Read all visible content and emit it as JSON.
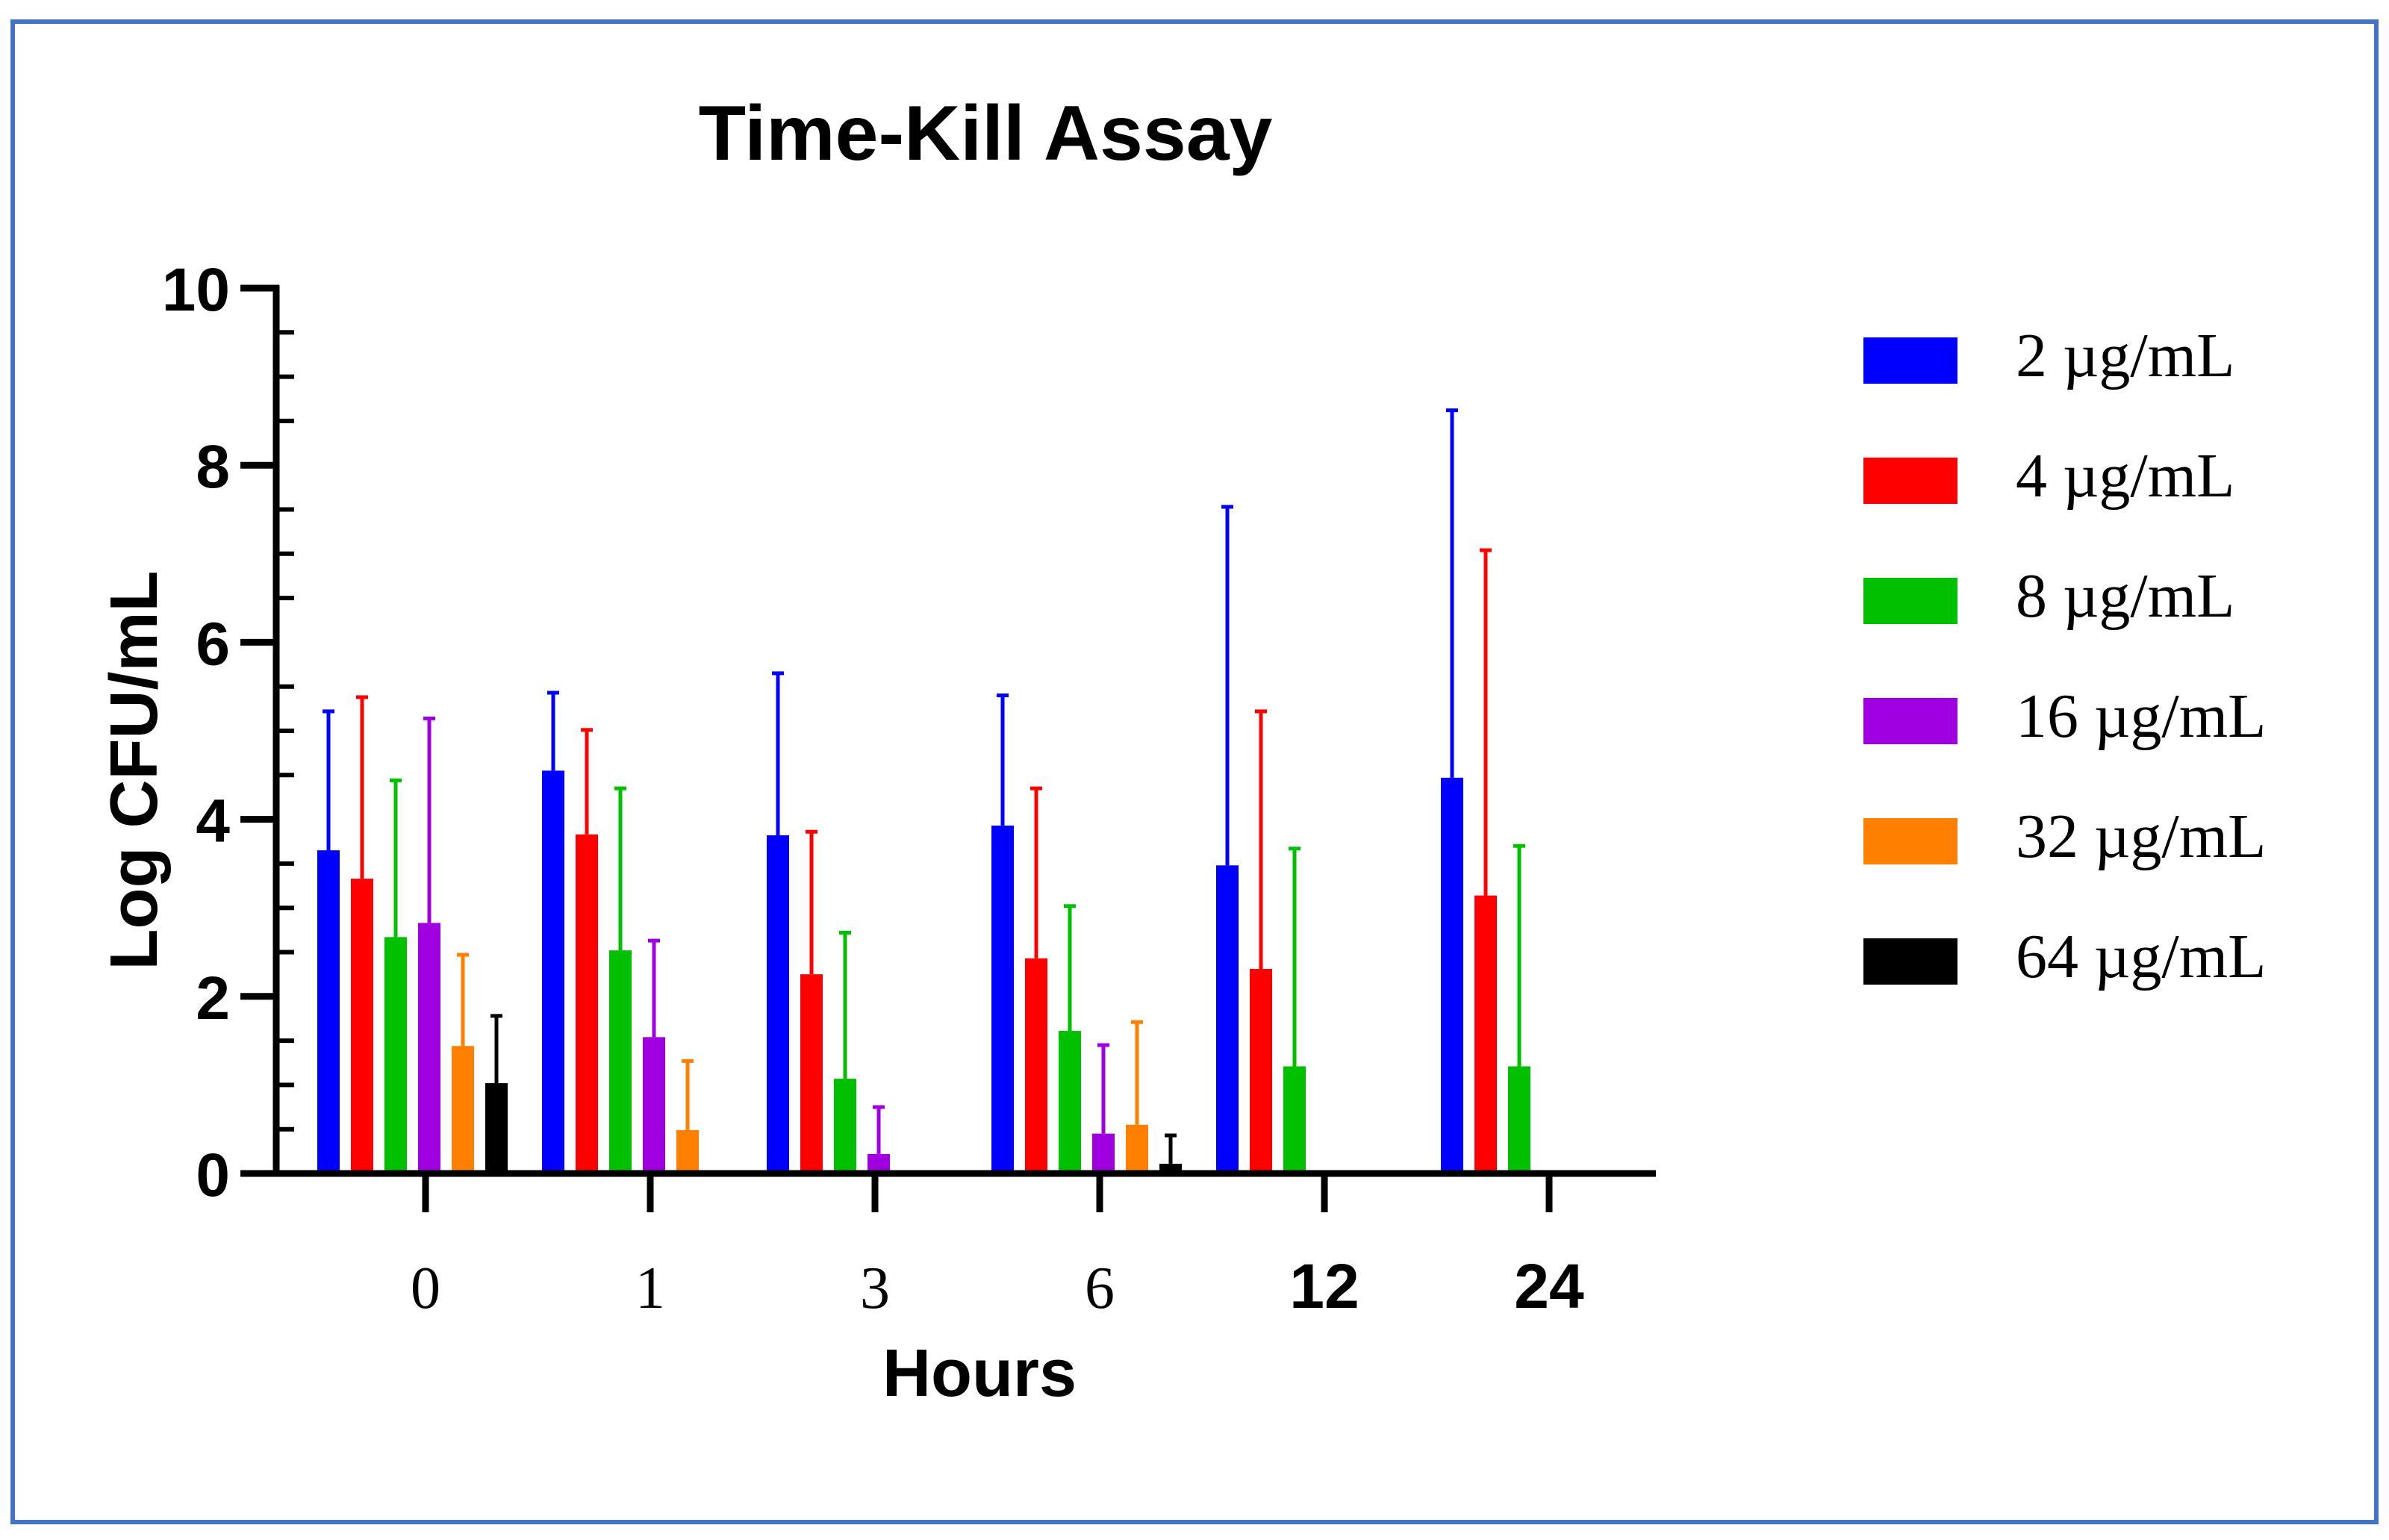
{
  "chart_data": {
    "type": "bar",
    "title": "Time-Kill Assay",
    "xlabel": "Hours",
    "ylabel": "Log CFU/mL",
    "categories": [
      "0",
      "1",
      "3",
      "6",
      "12",
      "24"
    ],
    "ylim": [
      0,
      10
    ],
    "yticks": [
      "0",
      "2",
      "4",
      "6",
      "8",
      "10"
    ],
    "grid": false,
    "legend_position": "right",
    "error_bars": "upper",
    "series": [
      {
        "name": "2 µg/mL",
        "color": "#0000ff",
        "values": [
          3.65,
          4.55,
          3.82,
          3.93,
          3.48,
          4.47
        ],
        "errors": [
          1.57,
          0.88,
          1.83,
          1.47,
          4.05,
          4.15
        ]
      },
      {
        "name": "4 µg/mL",
        "color": "#ff0000",
        "values": [
          3.33,
          3.83,
          2.25,
          2.43,
          2.31,
          3.14
        ],
        "errors": [
          2.05,
          1.18,
          1.61,
          1.92,
          2.91,
          3.9
        ]
      },
      {
        "name": "8 µg/mL",
        "color": "#00c000",
        "values": [
          2.67,
          2.52,
          1.07,
          1.61,
          1.21,
          1.21
        ],
        "errors": [
          1.77,
          1.83,
          1.65,
          1.41,
          2.46,
          2.49
        ]
      },
      {
        "name": "16 µg/mL",
        "color": "#a000e0",
        "values": [
          2.83,
          1.54,
          0.22,
          0.45,
          0,
          0
        ],
        "errors": [
          2.31,
          1.09,
          0.53,
          1.0,
          0,
          0
        ]
      },
      {
        "name": "32 µg/mL",
        "color": "#ff8000",
        "values": [
          1.44,
          0.49,
          0,
          0.55,
          0,
          0
        ],
        "errors": [
          1.03,
          0.78,
          0,
          1.16,
          0,
          0
        ]
      },
      {
        "name": "64 µg/mL",
        "color": "#000000",
        "values": [
          1.02,
          0,
          0,
          0.11,
          0,
          0
        ],
        "errors": [
          0.76,
          0,
          0,
          0.32,
          0,
          0
        ]
      }
    ]
  }
}
